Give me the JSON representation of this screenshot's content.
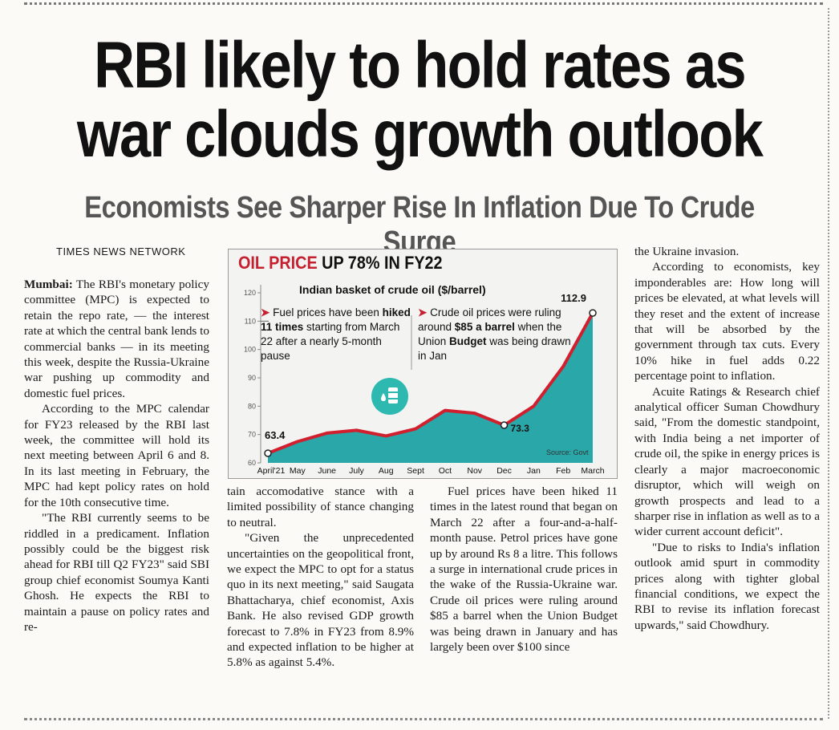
{
  "headline": {
    "line1": "RBI likely to hold rates as",
    "line2": "war clouds growth outlook"
  },
  "subheadline": "Economists See Sharper Rise In Inflation Due To Crude Surge",
  "byline": "TIMES NEWS NETWORK",
  "columns": {
    "col1": {
      "dateline": "Mumbai:",
      "p1": " The RBI's monetary policy committee (MPC) is expected to retain the repo rate, — the interest rate at which the central bank lends to commercial banks — in its meeting this week, despite the Russia-Ukraine war pushing up commodity and domestic fuel prices.",
      "p2": "According to the MPC calendar for FY23 released by the RBI last week, the committee will hold its next meeting between April 6 and 8. In its last meeting in February, the MPC had kept policy rates on hold for the 10th consecutive time.",
      "p3": "\"The RBI currently seems to be riddled in a predicament. Inflation possibly could be the biggest risk ahead for RBI till Q2 FY23\" said SBI group chief economist Soumya Kanti Ghosh. He expects the RBI to maintain a pause on policy rates and re-"
    },
    "col2": {
      "p1": "tain accomodative stance with a limited possibility of stance changing to neutral.",
      "p2": "\"Given the unprecedented uncertainties on the geopolitical front, we expect the MPC to opt for a status quo in its next meeting,\" said Saugata Bhattacharya, chief economist, Axis Bank. He also revised GDP growth forecast to 7.8% in FY23 from 8.9% and expected inflation to be higher at 5.8% as against 5.4%."
    },
    "col3": {
      "p1": "Fuel prices have been hiked 11 times in the latest round that began on March 22 after a four-and-a-half-month pause. Petrol prices have gone up by around Rs 8 a litre. This follows a surge in international crude prices in the wake of the Russia-Ukraine war. Crude oil prices were ruling around $85 a barrel when the Union Budget was being drawn in January and has largely been over $100 since"
    },
    "col4": {
      "p1": "the Ukraine invasion.",
      "p2": "According to economists, key imponderables are: How long will prices be elevated, at what levels will they reset and the extent of increase that will be absorbed by the government through tax cuts. Every 10% hike in fuel adds 0.22 percentage point to inflation.",
      "p3": "Acuite Ratings & Research chief analytical officer Suman Chowdhury said, \"From the domestic standpoint, with India being a net importer of crude oil, the spike in energy prices is clearly a major macroeconomic disruptor, which will weigh on growth prospects and lead to a sharper rise in inflation as well as to a wider current account deficit\".",
      "p4": "\"Due to risks to India's inflation outlook amid spurt in commodity prices along with tighter global financial conditions, we expect the RBI to revise its inflation forecast upwards,\" said Chowdhury."
    }
  },
  "chart_data": {
    "type": "area",
    "title_red": "OIL PRICE",
    "title_rest": " UP 78% IN FY22",
    "subtitle": "Indian basket of crude oil ($/barrel)",
    "categories": [
      "April'21",
      "May",
      "June",
      "July",
      "Aug",
      "Sept",
      "Oct",
      "Nov",
      "Dec",
      "Jan",
      "Feb",
      "March"
    ],
    "x_positions": [
      0,
      1,
      2,
      3,
      4,
      5,
      6,
      7,
      8,
      9,
      10,
      11
    ],
    "values": [
      63.4,
      67.5,
      70.5,
      71.5,
      69.5,
      72,
      78.5,
      77.5,
      73.3,
      80,
      94,
      112.9
    ],
    "ylim": [
      60,
      120
    ],
    "yticks": [
      60,
      70,
      80,
      90,
      100,
      110,
      120
    ],
    "labels": {
      "start": "63.4",
      "low": "73.3",
      "end": "112.9"
    },
    "annotation1": {
      "pre": "Fuel prices have been ",
      "bold": "hiked 11 times",
      "post": " starting from March 22 after a nearly 5-month pause"
    },
    "annotation2": {
      "pre": "Crude oil prices were ruling around ",
      "bold1": "$85 a barrel",
      "mid": " when the Union ",
      "bold2": "Budget",
      "post": " was being drawn in Jan"
    },
    "source": "Source: Govt",
    "colors": {
      "area": "#2aa7a8",
      "line": "#d11f2e",
      "title_red": "#c62030"
    }
  }
}
